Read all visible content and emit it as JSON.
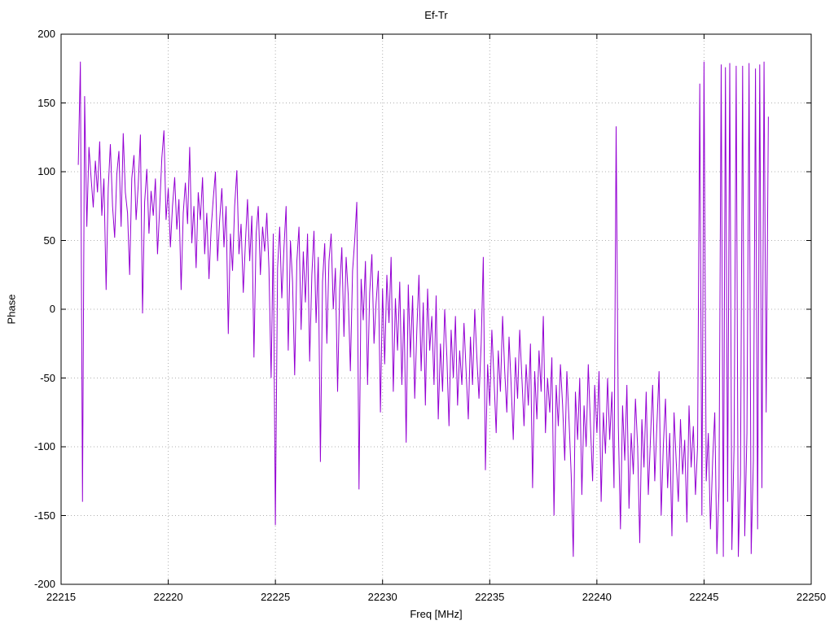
{
  "window": {
    "background": "#ffffff"
  },
  "chart_data": {
    "type": "line",
    "title": "Ef-Tr",
    "xlabel": "Freq [MHz]",
    "ylabel": "Phase",
    "xlim": [
      22215,
      22250
    ],
    "ylim": [
      -200,
      200
    ],
    "x_ticks": [
      22215,
      22220,
      22225,
      22230,
      22235,
      22240,
      22245,
      22250
    ],
    "y_ticks": [
      -200,
      -150,
      -100,
      -50,
      0,
      50,
      100,
      150,
      200
    ],
    "grid": true,
    "grid_style": "dotted",
    "legend_position": "none",
    "colors": {
      "line": "#9400d3",
      "grid": "#b0b0b0",
      "axis": "#000000",
      "text": "#000000"
    },
    "series": [
      {
        "name": "Ef-Tr phase",
        "color": "#9400d3",
        "x_start": 22215.8,
        "x_step": 0.1,
        "values": [
          105,
          180,
          -140,
          155,
          60,
          118,
          96,
          74,
          108,
          85,
          122,
          68,
          95,
          14,
          88,
          120,
          75,
          52,
          98,
          115,
          60,
          128,
          85,
          70,
          25,
          95,
          112,
          65,
          90,
          127,
          -3,
          78,
          102,
          55,
          86,
          68,
          95,
          40,
          73,
          110,
          130,
          65,
          88,
          45,
          75,
          96,
          58,
          80,
          14,
          70,
          92,
          62,
          118,
          48,
          75,
          30,
          85,
          65,
          96,
          40,
          70,
          22,
          58,
          80,
          100,
          35,
          65,
          88,
          45,
          75,
          -18,
          55,
          28,
          75,
          101,
          40,
          62,
          12,
          48,
          80,
          35,
          68,
          -35,
          55,
          75,
          25,
          60,
          42,
          70,
          30,
          -50,
          55,
          -157,
          30,
          60,
          8,
          45,
          75,
          -30,
          50,
          20,
          -48,
          35,
          60,
          -15,
          42,
          5,
          55,
          -38,
          25,
          57,
          -10,
          38,
          -111,
          20,
          48,
          -25,
          35,
          55,
          0,
          30,
          -60,
          15,
          45,
          -20,
          38,
          10,
          -45,
          28,
          50,
          78,
          -131,
          22,
          -8,
          35,
          -55,
          12,
          40,
          -25,
          5,
          28,
          -75,
          15,
          -40,
          25,
          -10,
          38,
          -60,
          8,
          -30,
          20,
          -55,
          0,
          -97,
          18,
          -35,
          10,
          -65,
          -15,
          25,
          -45,
          5,
          -70,
          15,
          -30,
          -5,
          -55,
          10,
          -80,
          -25,
          -60,
          0,
          -35,
          -85,
          -15,
          -50,
          -5,
          -70,
          -30,
          -55,
          -10,
          -45,
          -80,
          -20,
          -55,
          0,
          -35,
          -65,
          -25,
          38,
          -117,
          -40,
          -70,
          -15,
          -50,
          -90,
          -30,
          -60,
          -5,
          -45,
          -75,
          -20,
          -55,
          -95,
          -35,
          -65,
          -15,
          -50,
          -85,
          -40,
          -70,
          -25,
          -130,
          -45,
          -80,
          -30,
          -60,
          -5,
          -90,
          -50,
          -75,
          -35,
          -150,
          -55,
          -85,
          -40,
          -70,
          -110,
          -45,
          -80,
          -120,
          -180,
          -60,
          -95,
          -50,
          -135,
          -70,
          -100,
          -40,
          -85,
          -125,
          -55,
          -90,
          -45,
          -140,
          -75,
          -105,
          -50,
          -95,
          -60,
          -130,
          133,
          -85,
          -160,
          -70,
          -110,
          -55,
          -145,
          -90,
          -120,
          -65,
          -100,
          -170,
          -80,
          -115,
          -60,
          -135,
          -95,
          -55,
          -125,
          -85,
          -45,
          -150,
          -100,
          -65,
          -130,
          -90,
          -165,
          -75,
          -110,
          -140,
          -80,
          -120,
          -95,
          -155,
          -70,
          -115,
          -85,
          -135,
          -100,
          164,
          -150,
          180,
          -125,
          -90,
          -160,
          -110,
          -75,
          -178,
          -130,
          178,
          -180,
          176,
          -140,
          179,
          -175,
          -100,
          177,
          -180,
          -120,
          177,
          -165,
          -90,
          179,
          -178,
          -110,
          175,
          -160,
          178,
          -130,
          180,
          -75,
          140
        ]
      }
    ]
  }
}
